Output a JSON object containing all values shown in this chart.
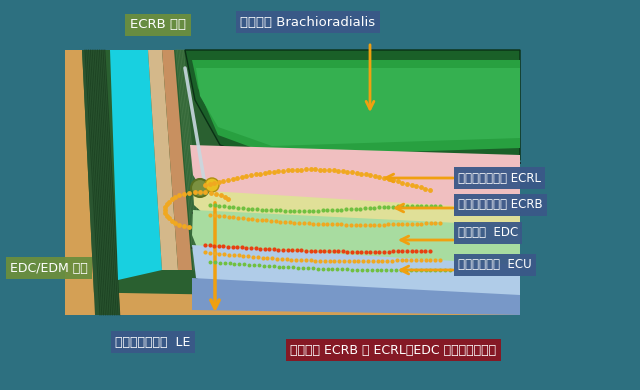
{
  "bg_color": "#2d7080",
  "labels": {
    "ecrb_attach": "ECRB 付着",
    "brachioradialis": "腕橈骨筋 Brachioradialis",
    "ecrl": "長橈側手根伸筋 ECRL",
    "ecrb": "短橈側手根伸筋 ECRB",
    "edc": "総指伸筋  EDC",
    "ecu": "尺側手根伸筋  ECU",
    "edc_edm": "EDC/EDM 付着",
    "le": "上腕骨外側上顆  LE",
    "note": "近位では ECRB は ECRL、EDC 深層を走行する"
  },
  "label_bg": {
    "ecrb_attach": "#6b8e3e",
    "brachioradialis": "#3a5888",
    "ecrl": "#3a5888",
    "ecrb": "#3a5888",
    "edc": "#3a5888",
    "ecu": "#3a5888",
    "edc_edm": "#6b8e3e",
    "le": "#3a5888",
    "note": "#8b1520"
  },
  "colors": {
    "dark_green_bg": "#2a6030",
    "bone_orange": "#d4a055",
    "bone_tan": "#c8956a",
    "cyan": "#18d0e0",
    "green_fiber": "#3a7a3a",
    "br_dark": "#1a7030",
    "br_mid": "#25a040",
    "br_light": "#35b850",
    "pink": "#f0c0c0",
    "yellow_cream": "#e8e498",
    "light_green": "#a8dca0",
    "pale_blue": "#b0cce8",
    "blue": "#78a8d8",
    "orange_arrow": "#f0a010",
    "white_line": "#c8d8e0",
    "olive_circle": "#7a9040",
    "yellow_circle": "#e8c020"
  }
}
